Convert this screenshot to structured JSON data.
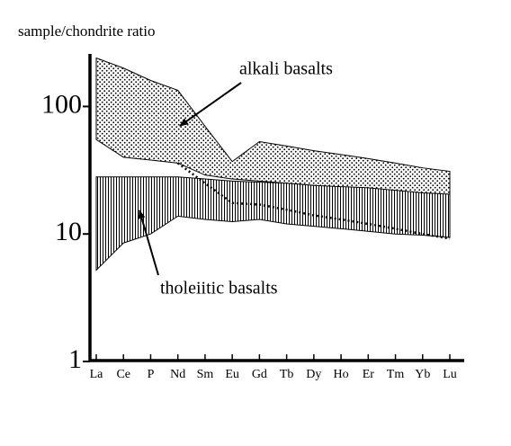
{
  "chart_data": {
    "type": "band",
    "ylabel": "sample/chondrite ratio",
    "categories": [
      "La",
      "Ce",
      "P",
      "Nd",
      "Sm",
      "Eu",
      "Gd",
      "Tb",
      "Dy",
      "Ho",
      "Er",
      "Tm",
      "Yb",
      "Lu"
    ],
    "log_scale": true,
    "ylim": [
      1,
      250
    ],
    "yticks": [
      1,
      10,
      100
    ],
    "series": [
      {
        "name": "alkali basalts",
        "pattern": "dots",
        "color": "#000000",
        "high": [
          240,
          200,
          160,
          134,
          70,
          37,
          53,
          49,
          45,
          42,
          39,
          36,
          33,
          31
        ],
        "low": [
          55,
          40,
          38,
          36,
          29,
          27,
          26,
          25,
          24,
          23,
          22,
          21,
          20.5,
          20
        ]
      },
      {
        "name": "tholeiitic basalts",
        "pattern": "vertical-lines",
        "color": "#000000",
        "high": [
          28,
          28,
          28,
          28,
          27,
          26,
          25.5,
          25,
          24,
          23.5,
          23,
          22,
          21,
          20.5
        ],
        "low": [
          5.2,
          8.5,
          10,
          13.8,
          13,
          12.5,
          13,
          12,
          11.5,
          11,
          10.5,
          10,
          9.8,
          9.4
        ]
      },
      {
        "type": "line",
        "style": "dotted",
        "color": "#000000",
        "values": [
          null,
          null,
          null,
          36,
          25,
          17.5,
          17,
          15.5,
          14,
          13,
          12,
          11,
          10,
          9.2
        ]
      }
    ]
  }
}
